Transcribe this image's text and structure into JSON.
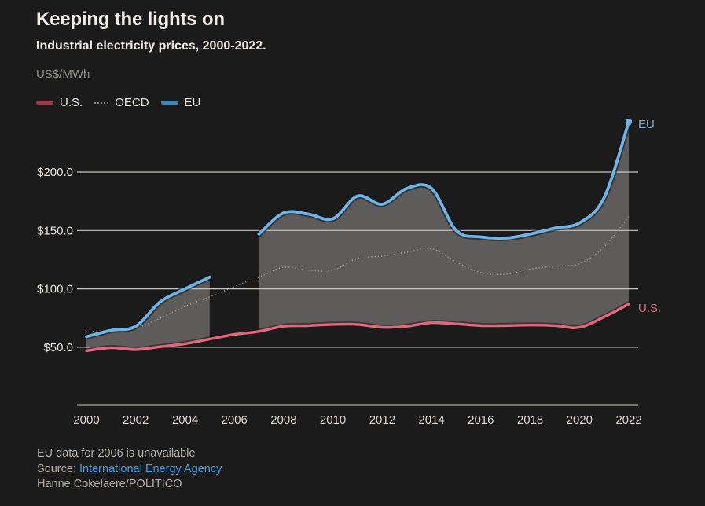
{
  "header": {
    "title": "Keeping the lights on",
    "subtitle": "Industrial electricity prices, 2000-2022.",
    "unit": "US$/MWh"
  },
  "legend": {
    "items": [
      {
        "id": "us",
        "label": "U.S.",
        "swatch": "#9d3a4b",
        "style": "solid"
      },
      {
        "id": "oecd",
        "label": "OECD",
        "swatch": "#8d8a85",
        "style": "dotted"
      },
      {
        "id": "eu",
        "label": "EU",
        "swatch": "#3d87bd",
        "style": "solid"
      }
    ]
  },
  "footer": {
    "note": "EU data for 2006 is unavailable",
    "source_prefix": "Source:",
    "source_link": "International Energy Agency",
    "credit": "Hanne Cokelaere/POLITICO"
  },
  "colors": {
    "background": "#1b1b1b",
    "grid": "#c9c5be",
    "axis": "#d0ccc4",
    "tick_text": "#e9e5de",
    "x_tick_text": "#d8d4cd",
    "muted_text": "#b2aea8",
    "link": "#42a0e8",
    "band_fill": "#5d5c5b"
  },
  "chart_data": {
    "type": "line",
    "title": "Keeping the lights on",
    "subtitle": "Industrial electricity prices, 2000-2022.",
    "unit": "US$/MWh",
    "grid": true,
    "legend_position": "top-left",
    "ylim": [
      40,
      250
    ],
    "x": [
      2000,
      2001,
      2002,
      2003,
      2004,
      2005,
      2006,
      2007,
      2008,
      2009,
      2010,
      2011,
      2012,
      2013,
      2014,
      2015,
      2016,
      2017,
      2018,
      2019,
      2020,
      2021,
      2022
    ],
    "x_tick_labels": [
      "2000",
      "2002",
      "2004",
      "2006",
      "2008",
      "2010",
      "2012",
      "2014",
      "2016",
      "2018",
      "2020",
      "2022"
    ],
    "y_ticks": [
      {
        "value": 200,
        "label": "$200.0"
      },
      {
        "value": 150,
        "label": "$150.0"
      },
      {
        "value": 100,
        "label": "$100.0"
      },
      {
        "value": 50,
        "label": "$50.0"
      }
    ],
    "series": [
      {
        "name": "U.S.",
        "style": "solid",
        "color": "#df6a7e",
        "halo": "#2a1016",
        "end_label": "U.S.",
        "end_label_color": "#da6a7e",
        "values": [
          47,
          49.5,
          48,
          50.5,
          53,
          57,
          61,
          63.5,
          68,
          68.5,
          69.5,
          69.5,
          67,
          68,
          71,
          70,
          68.5,
          68.5,
          69,
          68.5,
          67,
          76,
          87
        ]
      },
      {
        "name": "OECD",
        "style": "dotted",
        "color": "#a5a19b",
        "values": [
          63,
          65,
          66.5,
          75,
          85,
          93,
          102,
          110,
          118.5,
          116,
          116,
          126,
          128,
          131.5,
          134.5,
          123,
          114,
          112.5,
          117,
          119.5,
          121.5,
          136,
          162
        ]
      },
      {
        "name": "EU",
        "style": "solid",
        "color": "#73b2e1",
        "halo": "#0c1824",
        "end_label": "EU",
        "end_label_color": "#7ab2da",
        "note": "2006 value unavailable (gap in line and band)",
        "values": [
          59,
          64.5,
          68,
          89,
          100,
          110,
          null,
          147,
          165,
          164,
          160,
          179.5,
          172.5,
          186,
          186,
          150,
          144.5,
          143.5,
          147,
          152,
          156.5,
          178,
          243
        ]
      }
    ],
    "band": {
      "between": [
        "EU",
        "U.S."
      ],
      "fill": "#5d5c5b",
      "note": "gray band shades gap between EU line (top) and U.S. line (bottom); interrupted at 2006"
    }
  }
}
